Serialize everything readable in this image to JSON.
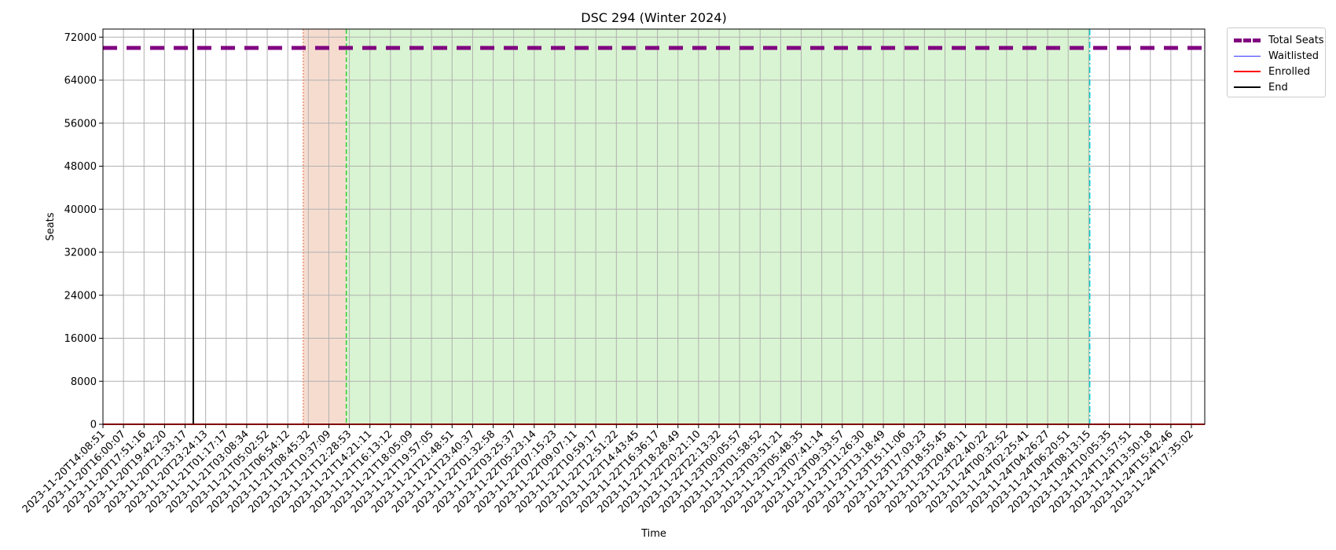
{
  "chart_data": {
    "type": "line",
    "title": "DSC 294 (Winter 2024)",
    "xlabel": "Time",
    "ylabel": "Seats",
    "ylim": [
      0,
      73500
    ],
    "yticks": [
      0,
      8000,
      16000,
      24000,
      32000,
      40000,
      48000,
      56000,
      64000,
      72000
    ],
    "grid": true,
    "legend_position": "outside top-right",
    "categories": [
      "2023-11-20T14:08:51",
      "2023-11-20T16:00:07",
      "2023-11-20T17:51:16",
      "2023-11-20T19:42:20",
      "2023-11-20T21:33:17",
      "2023-11-20T23:24:13",
      "2023-11-21T01:17:17",
      "2023-11-21T03:08:34",
      "2023-11-21T05:02:52",
      "2023-11-21T06:54:12",
      "2023-11-21T08:45:32",
      "2023-11-21T10:37:09",
      "2023-11-21T12:28:53",
      "2023-11-21T14:21:11",
      "2023-11-21T16:13:12",
      "2023-11-21T18:05:09",
      "2023-11-21T19:57:05",
      "2023-11-21T21:48:51",
      "2023-11-21T23:40:37",
      "2023-11-22T01:32:58",
      "2023-11-22T03:25:37",
      "2023-11-22T05:23:14",
      "2023-11-22T07:15:23",
      "2023-11-22T09:07:11",
      "2023-11-22T10:59:17",
      "2023-11-22T12:51:22",
      "2023-11-22T14:43:45",
      "2023-11-22T16:36:17",
      "2023-11-22T18:28:49",
      "2023-11-22T20:21:10",
      "2023-11-22T22:13:32",
      "2023-11-23T00:05:57",
      "2023-11-23T01:58:52",
      "2023-11-23T03:51:21",
      "2023-11-23T05:48:35",
      "2023-11-23T07:41:14",
      "2023-11-23T09:33:57",
      "2023-11-23T11:26:30",
      "2023-11-23T13:18:49",
      "2023-11-23T15:11:06",
      "2023-11-23T17:03:23",
      "2023-11-23T18:55:45",
      "2023-11-23T20:48:11",
      "2023-11-23T22:40:22",
      "2023-11-24T00:32:52",
      "2023-11-24T02:25:41",
      "2023-11-24T04:26:27",
      "2023-11-24T06:20:51",
      "2023-11-24T08:13:15",
      "2023-11-24T10:05:35",
      "2023-11-24T11:57:51",
      "2023-11-24T13:50:18",
      "2023-11-24T15:42:46",
      "2023-11-24T17:35:02"
    ],
    "series": [
      {
        "name": "Total Seats",
        "color": "#800080",
        "style": "dashed",
        "width": 5,
        "values_constant": 70000
      },
      {
        "name": "Waitlisted",
        "color": "#3333ff",
        "style": "solid",
        "width": 1.2,
        "values_constant": 0
      },
      {
        "name": "Enrolled",
        "color": "#ff0000",
        "style": "solid",
        "width": 2,
        "values_constant": 0
      },
      {
        "name": "End",
        "color": "#000000",
        "style": "solid",
        "width": 2
      }
    ],
    "vertical_markers": [
      {
        "name": "End",
        "x_index": 4.4,
        "color": "#000000",
        "style": "solid"
      },
      {
        "x_index": 9.75,
        "color": "#e9967a",
        "style": "dotted"
      },
      {
        "x_index": 11.85,
        "color": "#33cc33",
        "style": "dashed"
      },
      {
        "x_index": 48.05,
        "color": "#00cccc",
        "style": "dashdot"
      }
    ],
    "shaded_regions": [
      {
        "x_start_index": 9.75,
        "x_end_index": 11.85,
        "color": "#f6dccf"
      },
      {
        "x_start_index": 11.85,
        "x_end_index": 48.05,
        "color": "#d9f4d2"
      }
    ]
  }
}
